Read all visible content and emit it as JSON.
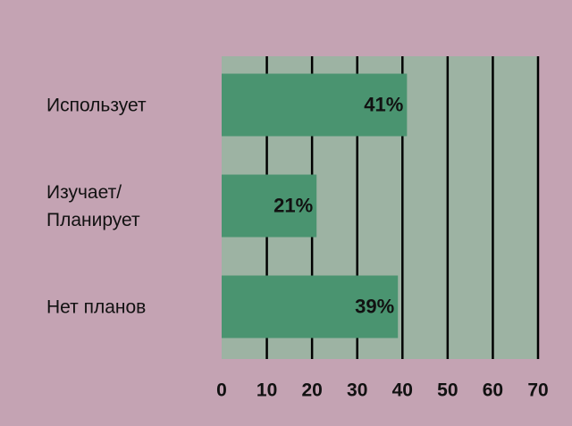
{
  "chart_data": {
    "type": "hbar",
    "categories": [
      "Использует",
      "Изучает/\nПланирует",
      "Нет планов"
    ],
    "values": [
      41,
      21,
      39
    ],
    "value_labels": [
      "41%",
      "21%",
      "39%"
    ],
    "color": "#4a9470",
    "plot_color": "#9db3a3",
    "xlim": [
      0,
      70
    ],
    "xticks": [
      0,
      10,
      20,
      30,
      40,
      50,
      60,
      70
    ],
    "grid": true
  }
}
